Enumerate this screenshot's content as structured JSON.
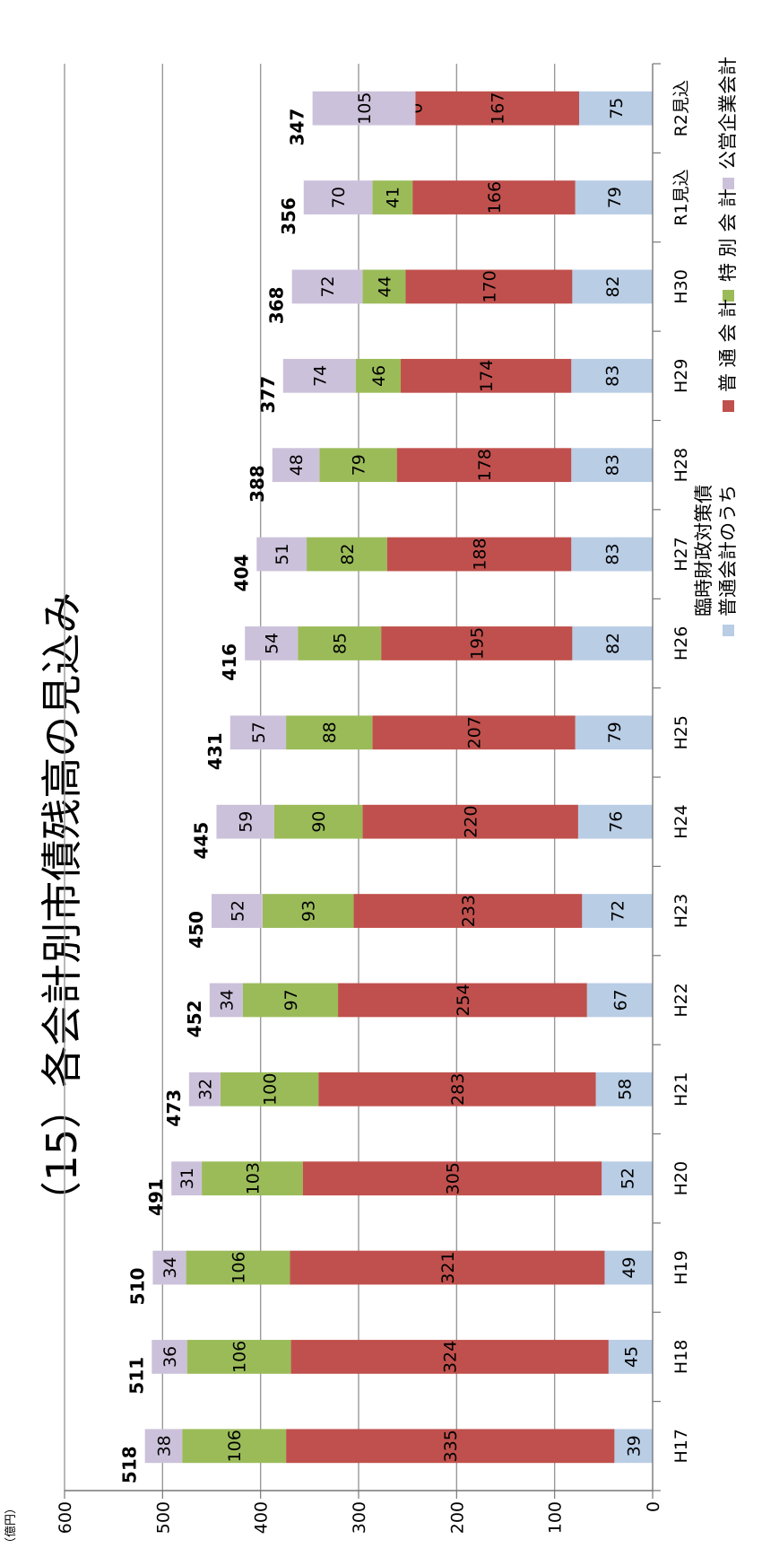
{
  "chart_data": {
    "type": "bar",
    "stacked": true,
    "title": "（15）各会計別市債残高の見込み",
    "ylabel": "（億円）",
    "ylim": [
      0,
      600
    ],
    "yticks": [
      0,
      100,
      200,
      300,
      400,
      500,
      600
    ],
    "grid": true,
    "legend_position": "right",
    "categories": [
      "H17",
      "H18",
      "H19",
      "H20",
      "H21",
      "H22",
      "H23",
      "H24",
      "H25",
      "H26",
      "H27",
      "H28",
      "H29",
      "H30",
      "R1見込",
      "R2見込"
    ],
    "series": [
      {
        "name": "普通会計のうち臨時財政対策債",
        "legend_lines": [
          "普通会計のうち",
          "臨時財政対策債"
        ],
        "color": "#b9cde5",
        "values": [
          39,
          45,
          49,
          52,
          58,
          67,
          72,
          76,
          79,
          82,
          83,
          83,
          83,
          82,
          79,
          75
        ]
      },
      {
        "name": "普 通 会 計",
        "legend_lines": [
          "普 通 会 計"
        ],
        "color": "#c0504d",
        "values": [
          335,
          324,
          321,
          305,
          283,
          254,
          233,
          220,
          207,
          195,
          188,
          178,
          174,
          170,
          166,
          167
        ]
      },
      {
        "name": "特 別 会 計",
        "legend_lines": [
          "特 別 会 計"
        ],
        "color": "#9bbb59",
        "values": [
          106,
          106,
          106,
          103,
          100,
          97,
          93,
          90,
          88,
          85,
          82,
          79,
          46,
          44,
          41,
          0
        ]
      },
      {
        "name": "公営企業会計",
        "legend_lines": [
          "公営企業会計"
        ],
        "color": "#ccc1da",
        "values": [
          38,
          36,
          34,
          31,
          32,
          34,
          52,
          59,
          57,
          54,
          51,
          48,
          74,
          72,
          70,
          105
        ]
      }
    ],
    "totals": [
      518,
      511,
      510,
      491,
      473,
      452,
      450,
      445,
      431,
      416,
      404,
      388,
      377,
      368,
      356,
      347
    ]
  }
}
